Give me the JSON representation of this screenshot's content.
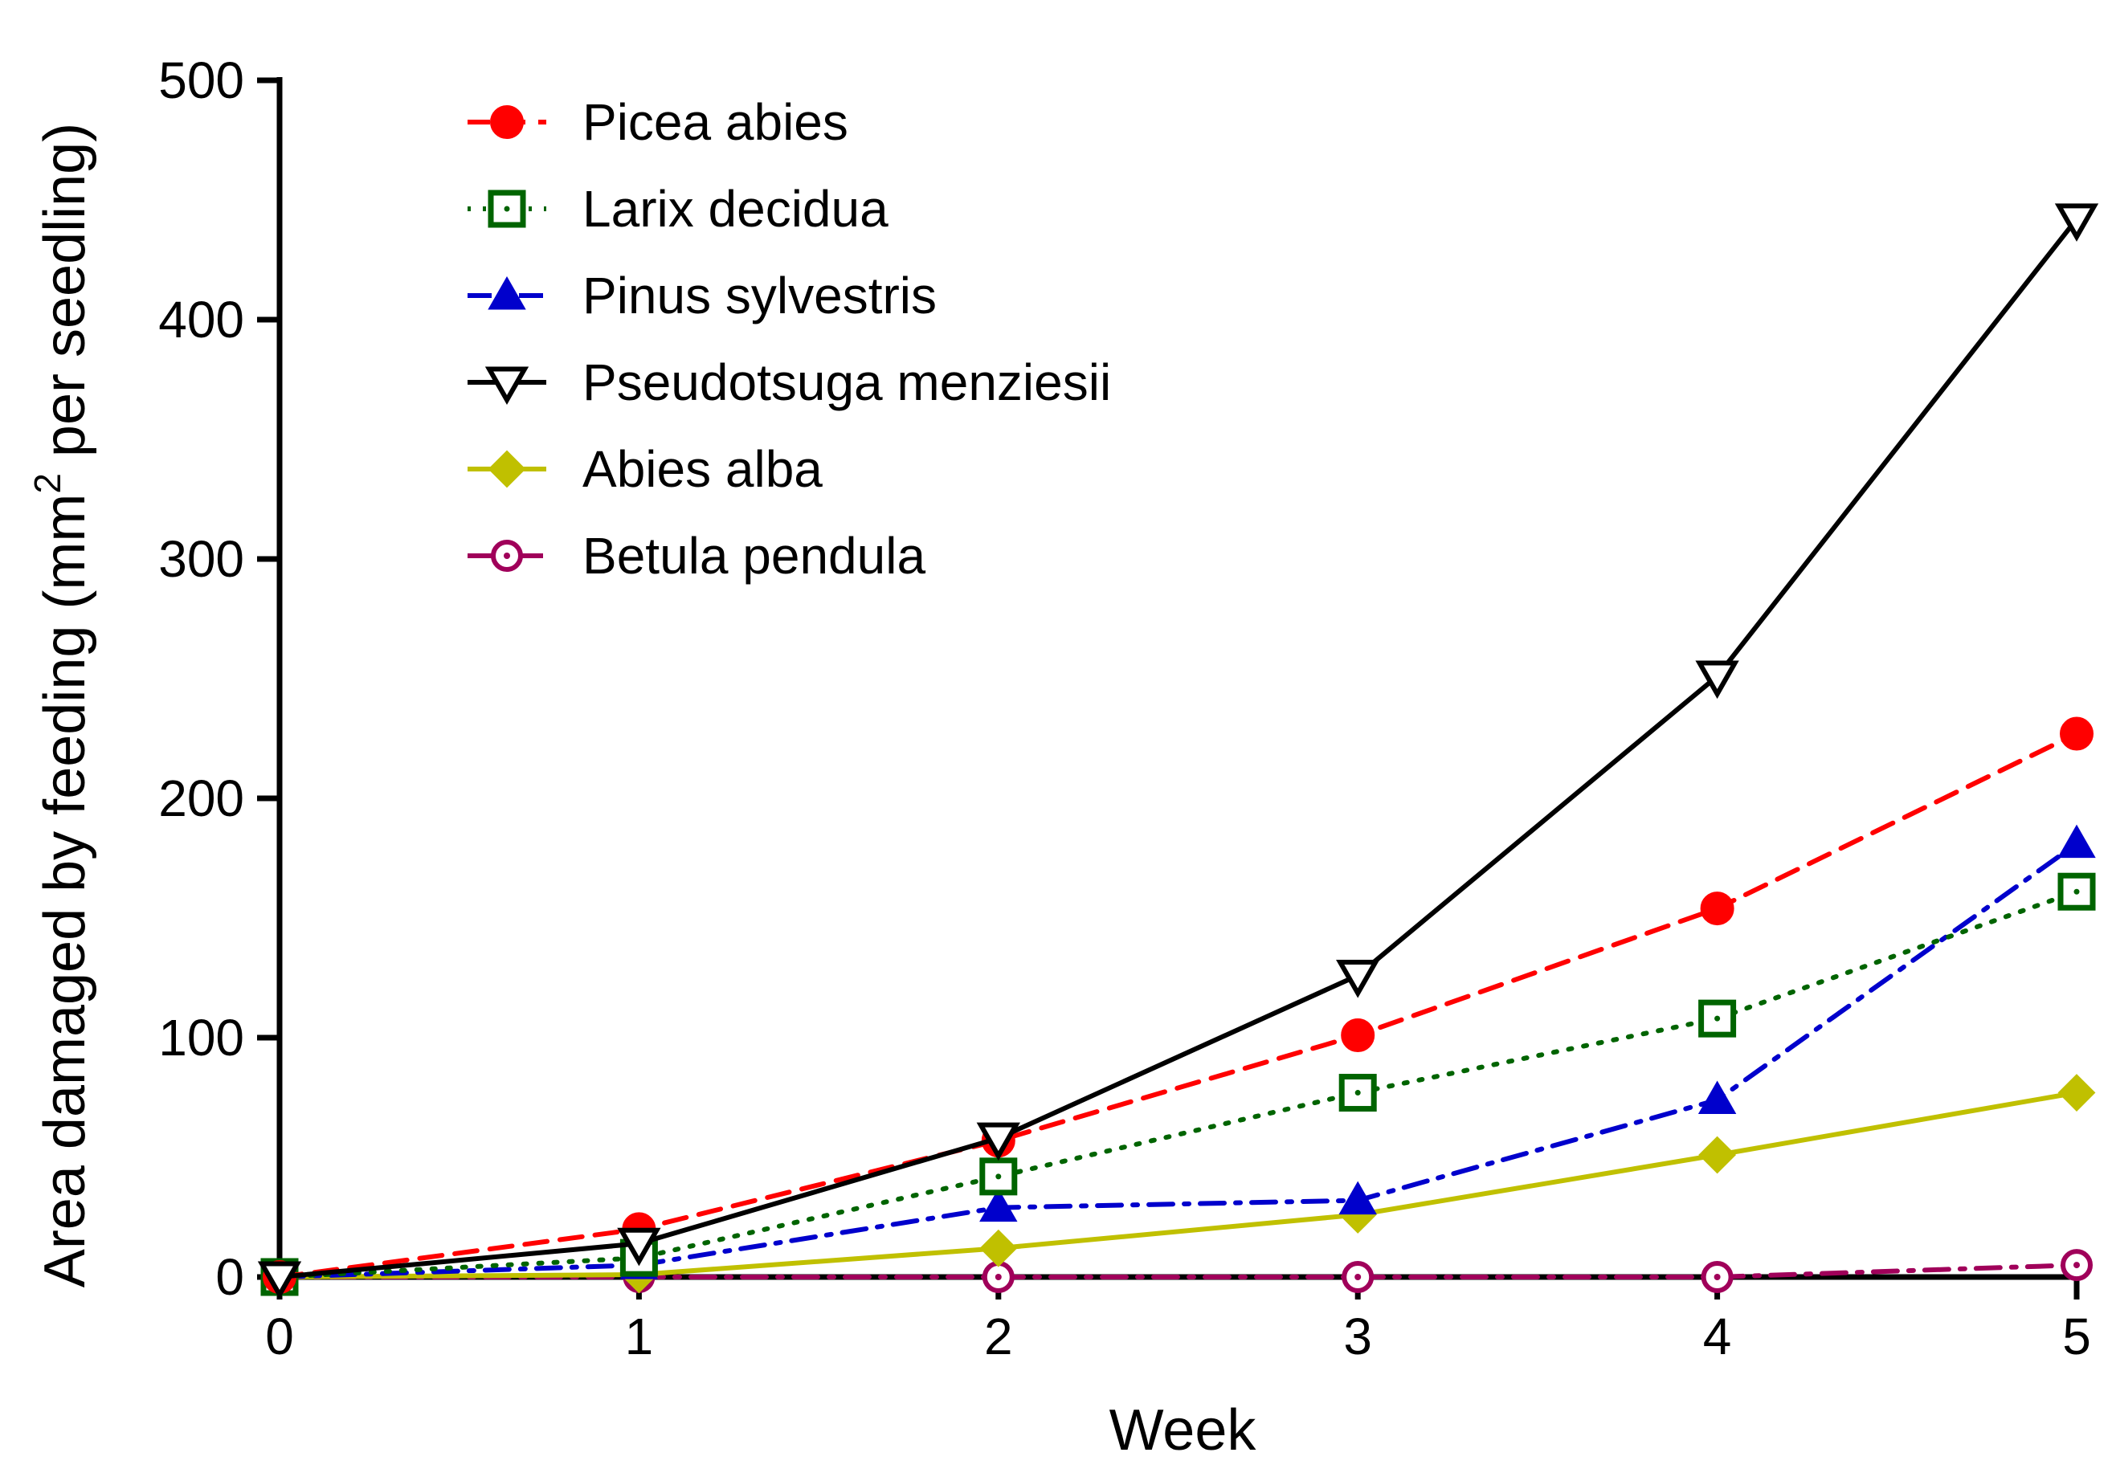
{
  "chart_data": {
    "type": "line",
    "title": "",
    "xlabel": "Week",
    "ylabel_main": "Area damaged by feeding (mm",
    "ylabel_sup": "2",
    "ylabel_tail": " per seedling)",
    "xlim": [
      0,
      5
    ],
    "ylim": [
      0,
      500
    ],
    "xticks": [
      0,
      1,
      2,
      3,
      4,
      5
    ],
    "yticks": [
      0,
      100,
      200,
      300,
      400,
      500
    ],
    "grid": false,
    "legend_position": "top-left",
    "x": [
      0,
      1,
      2,
      3,
      4,
      5
    ],
    "series": [
      {
        "name": "Picea abies",
        "values": [
          0,
          20,
          57,
          101,
          154,
          227
        ],
        "color": "#ff0000",
        "dash": "dashed",
        "marker": "circle-filled"
      },
      {
        "name": "Larix decidua",
        "values": [
          0,
          8,
          42,
          77,
          108,
          161
        ],
        "color": "#006400",
        "dash": "dotted",
        "marker": "square-open-dot"
      },
      {
        "name": "Pinus sylvestris",
        "values": [
          0,
          5,
          29,
          32,
          74,
          181
        ],
        "color": "#0000cc",
        "dash": "dashdot",
        "marker": "triangle-filled"
      },
      {
        "name": "Pseudotsuga menziesii",
        "values": [
          0,
          14,
          58,
          126,
          251,
          442
        ],
        "color": "#000000",
        "dash": "solid",
        "marker": "triangle-down-open"
      },
      {
        "name": "Abies alba",
        "values": [
          0,
          1,
          12,
          26,
          51,
          77
        ],
        "color": "#c0c000",
        "dash": "solid",
        "marker": "diamond-filled"
      },
      {
        "name": "Betula pendula",
        "values": [
          0,
          0,
          0,
          0,
          0,
          5
        ],
        "color": "#a0005a",
        "dash": "dashdot",
        "marker": "circle-open-dot"
      }
    ]
  }
}
